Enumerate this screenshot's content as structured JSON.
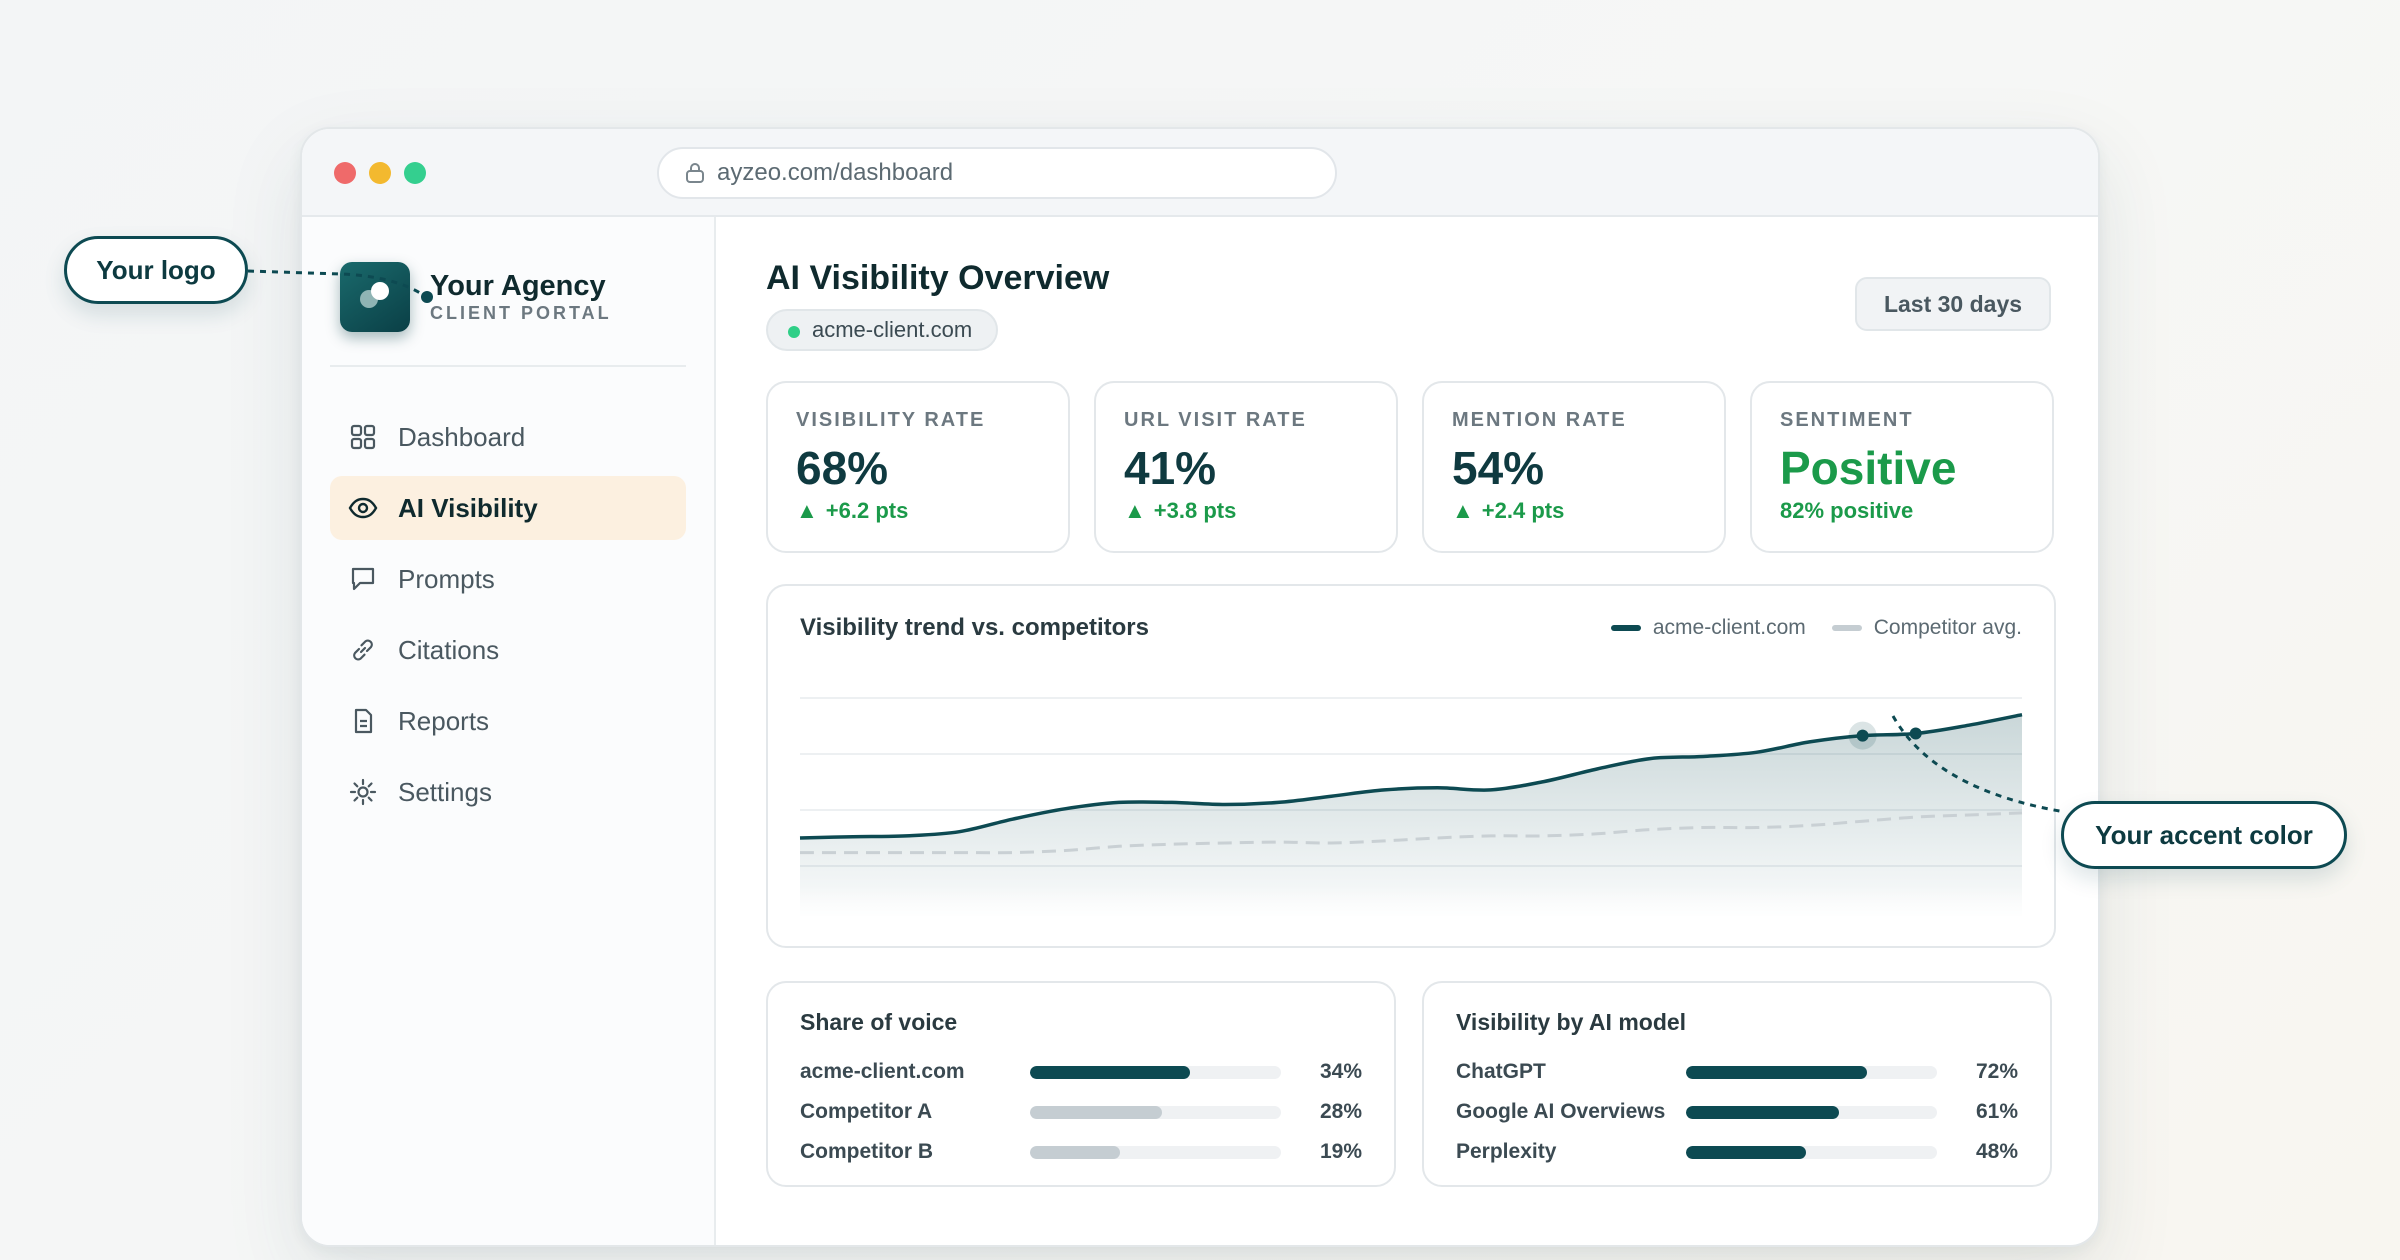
{
  "browser": {
    "url": "ayzeo.com/dashboard"
  },
  "brand": {
    "name": "Your Agency",
    "subtitle": "CLIENT PORTAL"
  },
  "nav": [
    {
      "label": "Dashboard",
      "icon": "grid-icon",
      "active": false
    },
    {
      "label": "AI Visibility",
      "icon": "eye-icon",
      "active": true
    },
    {
      "label": "Prompts",
      "icon": "chat-bubble-icon",
      "active": false
    },
    {
      "label": "Citations",
      "icon": "link-icon",
      "active": false
    },
    {
      "label": "Reports",
      "icon": "document-icon",
      "active": false
    },
    {
      "label": "Settings",
      "icon": "sun-gear-icon",
      "active": false
    }
  ],
  "header": {
    "title": "AI Visibility Overview",
    "domain": "acme-client.com",
    "range": "Last 30 days"
  },
  "kpis": [
    {
      "label": "VISIBILITY RATE",
      "value": "68%",
      "delta": "+6.2 pts"
    },
    {
      "label": "URL VISIT RATE",
      "value": "41%",
      "delta": "+3.8 pts"
    },
    {
      "label": "MENTION RATE",
      "value": "54%",
      "delta": "+2.4 pts"
    },
    {
      "label": "SENTIMENT",
      "value": "Positive",
      "delta": "82% positive"
    }
  ],
  "trend": {
    "title": "Visibility trend vs. competitors",
    "legend": [
      "acme-client.com",
      "Competitor avg."
    ]
  },
  "share_of_voice": {
    "title": "Share of voice",
    "rows": [
      {
        "label": "acme-client.com",
        "value": 34,
        "pct": "34%"
      },
      {
        "label": "Competitor A",
        "value": 28,
        "pct": "28%"
      },
      {
        "label": "Competitor B",
        "value": 19,
        "pct": "19%"
      }
    ]
  },
  "by_model": {
    "title": "Visibility by AI model",
    "rows": [
      {
        "label": "ChatGPT",
        "value": 72,
        "pct": "72%"
      },
      {
        "label": "Google AI Overviews",
        "value": 61,
        "pct": "61%"
      },
      {
        "label": "Perplexity",
        "value": 48,
        "pct": "48%"
      }
    ]
  },
  "callouts": {
    "logo": "Your logo",
    "accent": "Your accent color"
  },
  "colors": {
    "accent": "#0d4a52",
    "positive": "#1b9a4a",
    "competitor": "#c5cdd2",
    "active_nav_bg": "#fcf0e0"
  },
  "chart_data": {
    "type": "area",
    "series": [
      {
        "name": "acme-client.com",
        "values": [
          36.5,
          36.8,
          37,
          38,
          41,
          43.5,
          45,
          45,
          44.5,
          45,
          46.5,
          48,
          48.5,
          48,
          50,
          53,
          55.5,
          56,
          57,
          59.5,
          61,
          61.5,
          63.5,
          66
        ]
      },
      {
        "name": "Competitor avg.",
        "values": [
          33,
          33,
          33,
          33,
          33,
          33.5,
          34.5,
          35,
          35.3,
          35.5,
          35.3,
          35.8,
          36.5,
          37,
          37,
          37.5,
          38.5,
          39,
          39,
          39.5,
          40.5,
          41.5,
          42,
          42.5
        ]
      }
    ],
    "ylim": [
      25,
      70
    ],
    "grid": true,
    "legend_position": "top-right"
  }
}
